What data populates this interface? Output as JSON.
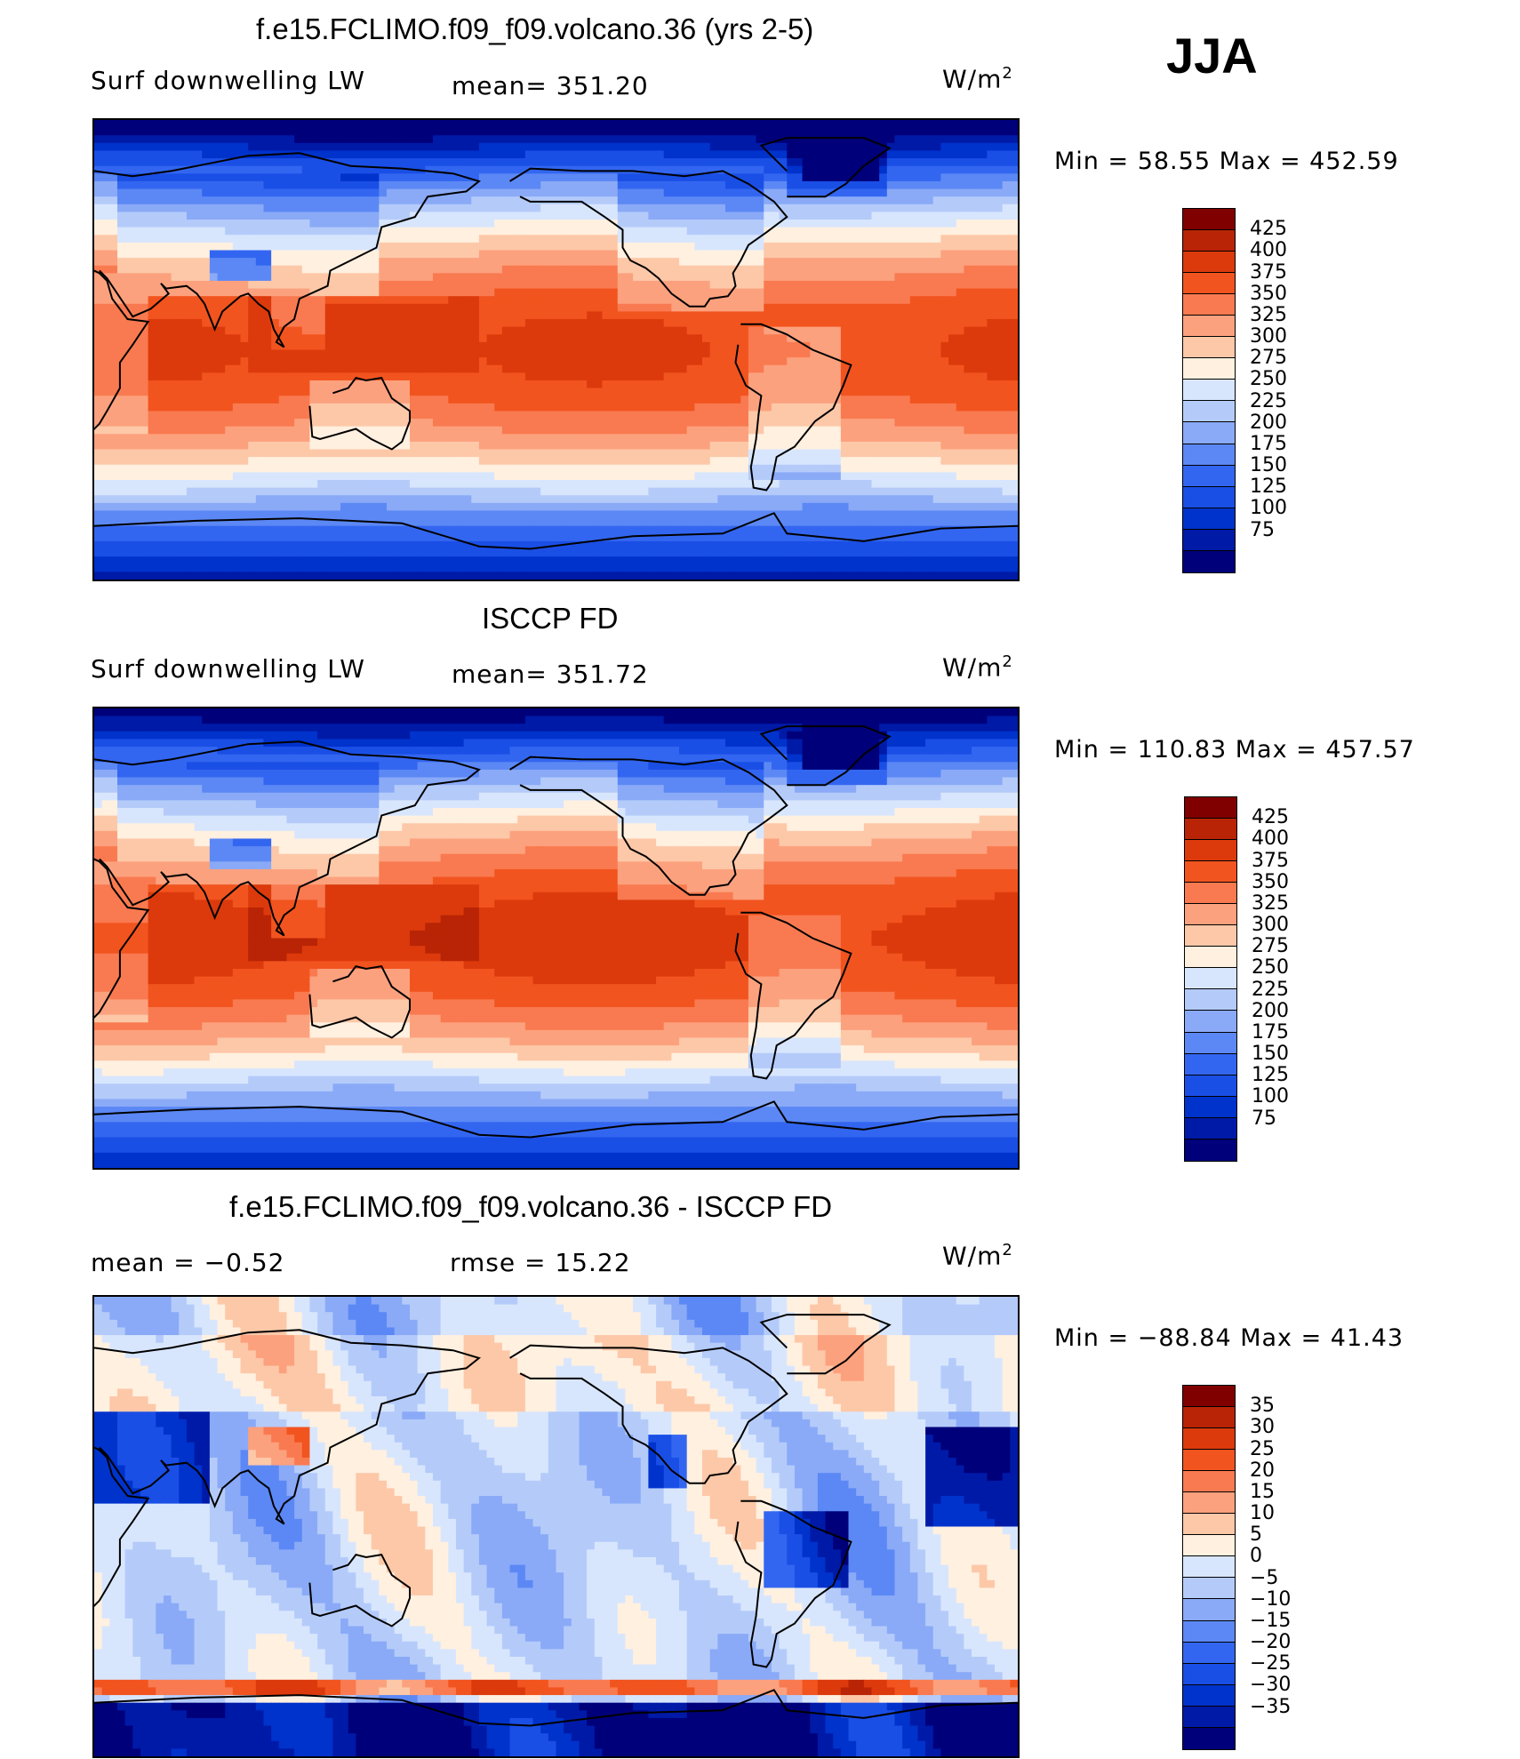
{
  "season": "JJA",
  "colors": {
    "model_obs": [
      "#00007a",
      "#001aa8",
      "#0033cc",
      "#1a4fe6",
      "#3366f0",
      "#5c88f5",
      "#8aaaf7",
      "#b4cbfa",
      "#d8e6fd",
      "#fff0e0",
      "#fdc8a8",
      "#fca17e",
      "#f97a50",
      "#f2541f",
      "#dc3a0c",
      "#b82405",
      "#800000"
    ],
    "diff": [
      "#00007a",
      "#001aa8",
      "#0033cc",
      "#1a4fe6",
      "#3366f0",
      "#5c88f5",
      "#8aaaf7",
      "#b4cbfa",
      "#d8e6fd",
      "#fff0e0",
      "#fdc8a8",
      "#fca17e",
      "#f97a50",
      "#f2541f",
      "#dc3a0c",
      "#b82405",
      "#800000"
    ],
    "coast": "#000000"
  },
  "panels": [
    {
      "title": "f.e15.FCLIMO.f09_f09.volcano.36 (yrs 2-5)",
      "left_label": "Surf downwelling LW",
      "center_label": "mean= 351.20",
      "units_base": "W/m",
      "units_exp": "2",
      "minmax": "Min =   58.55 Max = 452.59",
      "colorbar_labels": [
        "425",
        "400",
        "375",
        "350",
        "325",
        "300",
        "275",
        "250",
        "225",
        "200",
        "175",
        "150",
        "125",
        "100",
        "75"
      ],
      "palette": "model_obs",
      "field": "model"
    },
    {
      "title": "ISCCP FD",
      "left_label": "Surf downwelling LW",
      "center_label": "mean= 351.72",
      "units_base": "W/m",
      "units_exp": "2",
      "minmax": "Min = 110.83 Max = 457.57",
      "colorbar_labels": [
        "425",
        "400",
        "375",
        "350",
        "325",
        "300",
        "275",
        "250",
        "225",
        "200",
        "175",
        "150",
        "125",
        "100",
        "75"
      ],
      "palette": "model_obs",
      "field": "obs"
    },
    {
      "title": "f.e15.FCLIMO.f09_f09.volcano.36 - ISCCP FD",
      "left_label": "mean =   −0.52",
      "center_label": "rmse =   15.22",
      "units_base": "W/m",
      "units_exp": "2",
      "minmax": "Min = −88.84 Max =   41.43",
      "colorbar_labels": [
        "35",
        "30",
        "25",
        "20",
        "15",
        "10",
        "5",
        "0",
        "−5",
        "−10",
        "−15",
        "−20",
        "−25",
        "−30",
        "−35"
      ],
      "palette": "diff",
      "field": "diff"
    }
  ]
}
